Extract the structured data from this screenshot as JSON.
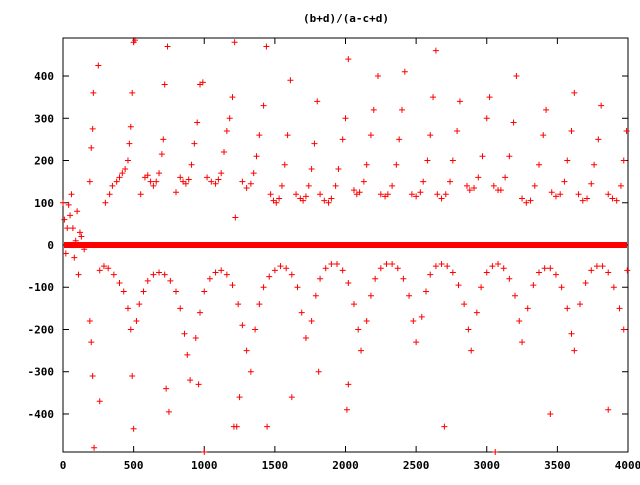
{
  "chart_data": {
    "type": "scatter",
    "title": "(b+d)/(a-c+d)",
    "xlabel": "",
    "ylabel": "",
    "xlim": [
      0,
      4000
    ],
    "ylim": [
      -490,
      490
    ],
    "xticks": [
      0,
      500,
      1000,
      1500,
      2000,
      2500,
      3000,
      3500,
      4000
    ],
    "yticks": [
      -400,
      -300,
      -200,
      -100,
      0,
      100,
      200,
      300,
      400
    ],
    "grid": false,
    "legend": "none",
    "marker": "plus",
    "color": "#ff0000",
    "series": [
      {
        "points": [
          [
            0,
            100
          ],
          [
            10,
            60
          ],
          [
            20,
            -20
          ],
          [
            30,
            40
          ],
          [
            40,
            95
          ],
          [
            50,
            70
          ],
          [
            60,
            120
          ],
          [
            70,
            40
          ],
          [
            80,
            -30
          ],
          [
            90,
            10
          ],
          [
            100,
            80
          ],
          [
            110,
            -70
          ],
          [
            120,
            30
          ],
          [
            130,
            20
          ],
          [
            150,
            -10
          ],
          [
            190,
            150
          ],
          [
            190,
            -180
          ],
          [
            200,
            230
          ],
          [
            200,
            -230
          ],
          [
            210,
            275
          ],
          [
            210,
            -310
          ],
          [
            215,
            360
          ],
          [
            220,
            -480
          ],
          [
            250,
            425
          ],
          [
            260,
            -370
          ],
          [
            300,
            100
          ],
          [
            330,
            120
          ],
          [
            350,
            140
          ],
          [
            380,
            150
          ],
          [
            400,
            160
          ],
          [
            420,
            170
          ],
          [
            440,
            180
          ],
          [
            460,
            200
          ],
          [
            470,
            240
          ],
          [
            480,
            280
          ],
          [
            490,
            360
          ],
          [
            500,
            480
          ],
          [
            490,
            -310
          ],
          [
            500,
            -435
          ],
          [
            510,
            485
          ],
          [
            550,
            120
          ],
          [
            580,
            160
          ],
          [
            600,
            165
          ],
          [
            620,
            150
          ],
          [
            640,
            140
          ],
          [
            660,
            150
          ],
          [
            680,
            170
          ],
          [
            700,
            215
          ],
          [
            710,
            250
          ],
          [
            720,
            380
          ],
          [
            740,
            470
          ],
          [
            730,
            -340
          ],
          [
            750,
            -395
          ],
          [
            800,
            125
          ],
          [
            830,
            160
          ],
          [
            850,
            150
          ],
          [
            870,
            145
          ],
          [
            890,
            155
          ],
          [
            910,
            190
          ],
          [
            930,
            240
          ],
          [
            950,
            290
          ],
          [
            970,
            380
          ],
          [
            990,
            385
          ],
          [
            960,
            -330
          ],
          [
            1020,
            160
          ],
          [
            1050,
            150
          ],
          [
            1080,
            145
          ],
          [
            1100,
            155
          ],
          [
            1120,
            170
          ],
          [
            1140,
            220
          ],
          [
            1160,
            270
          ],
          [
            1180,
            300
          ],
          [
            1200,
            350
          ],
          [
            1215,
            480
          ],
          [
            1210,
            -430
          ],
          [
            1220,
            65
          ],
          [
            1250,
            -360
          ],
          [
            1270,
            150
          ],
          [
            1300,
            135
          ],
          [
            1330,
            145
          ],
          [
            1350,
            170
          ],
          [
            1370,
            210
          ],
          [
            1390,
            260
          ],
          [
            1420,
            330
          ],
          [
            1440,
            470
          ],
          [
            1445,
            -430
          ],
          [
            1470,
            120
          ],
          [
            1490,
            105
          ],
          [
            1510,
            100
          ],
          [
            1530,
            110
          ],
          [
            1550,
            140
          ],
          [
            1570,
            190
          ],
          [
            1590,
            260
          ],
          [
            1610,
            390
          ],
          [
            1620,
            -360
          ],
          [
            1650,
            120
          ],
          [
            1680,
            110
          ],
          [
            1700,
            105
          ],
          [
            1720,
            115
          ],
          [
            1740,
            140
          ],
          [
            1760,
            180
          ],
          [
            1780,
            240
          ],
          [
            1800,
            340
          ],
          [
            1810,
            -300
          ],
          [
            1820,
            120
          ],
          [
            1850,
            105
          ],
          [
            1880,
            100
          ],
          [
            1900,
            110
          ],
          [
            1930,
            140
          ],
          [
            1950,
            180
          ],
          [
            1980,
            250
          ],
          [
            2000,
            300
          ],
          [
            2020,
            440
          ],
          [
            2010,
            -390
          ],
          [
            2060,
            130
          ],
          [
            2080,
            120
          ],
          [
            2100,
            125
          ],
          [
            2130,
            150
          ],
          [
            2150,
            190
          ],
          [
            2180,
            260
          ],
          [
            2200,
            320
          ],
          [
            2230,
            400
          ],
          [
            2250,
            120
          ],
          [
            2280,
            115
          ],
          [
            2300,
            120
          ],
          [
            2330,
            140
          ],
          [
            2360,
            190
          ],
          [
            2380,
            250
          ],
          [
            2400,
            320
          ],
          [
            2420,
            410
          ],
          [
            2470,
            120
          ],
          [
            2500,
            115
          ],
          [
            2530,
            125
          ],
          [
            2550,
            150
          ],
          [
            2580,
            200
          ],
          [
            2600,
            260
          ],
          [
            2620,
            350
          ],
          [
            2640,
            460
          ],
          [
            2650,
            120
          ],
          [
            2680,
            110
          ],
          [
            2710,
            120
          ],
          [
            2740,
            150
          ],
          [
            2760,
            200
          ],
          [
            2790,
            270
          ],
          [
            2810,
            340
          ],
          [
            2860,
            140
          ],
          [
            2880,
            130
          ],
          [
            2910,
            135
          ],
          [
            2940,
            160
          ],
          [
            2970,
            210
          ],
          [
            3000,
            300
          ],
          [
            3020,
            350
          ],
          [
            3050,
            140
          ],
          [
            3080,
            130
          ],
          [
            3100,
            130
          ],
          [
            3130,
            160
          ],
          [
            3160,
            210
          ],
          [
            3190,
            290
          ],
          [
            3210,
            400
          ],
          [
            3250,
            110
          ],
          [
            3280,
            100
          ],
          [
            3310,
            105
          ],
          [
            3340,
            140
          ],
          [
            3370,
            190
          ],
          [
            3400,
            260
          ],
          [
            3420,
            320
          ],
          [
            3460,
            125
          ],
          [
            3490,
            115
          ],
          [
            3520,
            120
          ],
          [
            3550,
            150
          ],
          [
            3570,
            200
          ],
          [
            3600,
            270
          ],
          [
            3620,
            360
          ],
          [
            3650,
            120
          ],
          [
            3680,
            105
          ],
          [
            3710,
            110
          ],
          [
            3740,
            145
          ],
          [
            3760,
            190
          ],
          [
            3790,
            250
          ],
          [
            3810,
            330
          ],
          [
            3860,
            120
          ],
          [
            3890,
            110
          ],
          [
            3920,
            105
          ],
          [
            3950,
            140
          ],
          [
            3970,
            200
          ],
          [
            3990,
            270
          ],
          [
            260,
            -60
          ],
          [
            290,
            -50
          ],
          [
            320,
            -55
          ],
          [
            360,
            -70
          ],
          [
            400,
            -90
          ],
          [
            430,
            -110
          ],
          [
            460,
            -150
          ],
          [
            480,
            -200
          ],
          [
            520,
            -180
          ],
          [
            540,
            -140
          ],
          [
            570,
            -110
          ],
          [
            600,
            -85
          ],
          [
            640,
            -70
          ],
          [
            680,
            -65
          ],
          [
            720,
            -70
          ],
          [
            760,
            -85
          ],
          [
            800,
            -110
          ],
          [
            830,
            -150
          ],
          [
            860,
            -210
          ],
          [
            880,
            -260
          ],
          [
            900,
            -320
          ],
          [
            940,
            -220
          ],
          [
            970,
            -160
          ],
          [
            1000,
            -110
          ],
          [
            1040,
            -80
          ],
          [
            1080,
            -65
          ],
          [
            1120,
            -60
          ],
          [
            1160,
            -70
          ],
          [
            1200,
            -95
          ],
          [
            1240,
            -140
          ],
          [
            1270,
            -190
          ],
          [
            1300,
            -250
          ],
          [
            1330,
            -300
          ],
          [
            1360,
            -200
          ],
          [
            1390,
            -140
          ],
          [
            1420,
            -100
          ],
          [
            1460,
            -75
          ],
          [
            1500,
            -60
          ],
          [
            1540,
            -50
          ],
          [
            1580,
            -55
          ],
          [
            1620,
            -70
          ],
          [
            1660,
            -100
          ],
          [
            1690,
            -160
          ],
          [
            1720,
            -220
          ],
          [
            1760,
            -180
          ],
          [
            1790,
            -120
          ],
          [
            1820,
            -80
          ],
          [
            1860,
            -55
          ],
          [
            1900,
            -45
          ],
          [
            1940,
            -45
          ],
          [
            1980,
            -60
          ],
          [
            2020,
            -90
          ],
          [
            2060,
            -140
          ],
          [
            2090,
            -200
          ],
          [
            2110,
            -250
          ],
          [
            2150,
            -180
          ],
          [
            2180,
            -120
          ],
          [
            2210,
            -80
          ],
          [
            2250,
            -55
          ],
          [
            2290,
            -45
          ],
          [
            2330,
            -45
          ],
          [
            2370,
            -55
          ],
          [
            2410,
            -80
          ],
          [
            2450,
            -120
          ],
          [
            2480,
            -180
          ],
          [
            2500,
            -230
          ],
          [
            2540,
            -170
          ],
          [
            2570,
            -110
          ],
          [
            2600,
            -70
          ],
          [
            2640,
            -50
          ],
          [
            2680,
            -45
          ],
          [
            2720,
            -50
          ],
          [
            2760,
            -65
          ],
          [
            2800,
            -95
          ],
          [
            2840,
            -140
          ],
          [
            2870,
            -200
          ],
          [
            2890,
            -250
          ],
          [
            2930,
            -160
          ],
          [
            2960,
            -100
          ],
          [
            3000,
            -65
          ],
          [
            3040,
            -50
          ],
          [
            3080,
            -45
          ],
          [
            3120,
            -55
          ],
          [
            3160,
            -80
          ],
          [
            3200,
            -120
          ],
          [
            3230,
            -180
          ],
          [
            3250,
            -230
          ],
          [
            3290,
            -150
          ],
          [
            3330,
            -95
          ],
          [
            3370,
            -65
          ],
          [
            3410,
            -55
          ],
          [
            3450,
            -55
          ],
          [
            3490,
            -70
          ],
          [
            3530,
            -100
          ],
          [
            3570,
            -150
          ],
          [
            3600,
            -210
          ],
          [
            3620,
            -250
          ],
          [
            3660,
            -140
          ],
          [
            3700,
            -90
          ],
          [
            3740,
            -60
          ],
          [
            3780,
            -50
          ],
          [
            3820,
            -50
          ],
          [
            3860,
            -65
          ],
          [
            3900,
            -100
          ],
          [
            3940,
            -150
          ],
          [
            3970,
            -200
          ],
          [
            3995,
            -60
          ],
          [
            1000,
            -490
          ],
          [
            1230,
            -430
          ],
          [
            2020,
            -330
          ],
          [
            2700,
            -430
          ],
          [
            3060,
            -490
          ],
          [
            3450,
            -400
          ],
          [
            3860,
            -390
          ]
        ]
      }
    ]
  }
}
